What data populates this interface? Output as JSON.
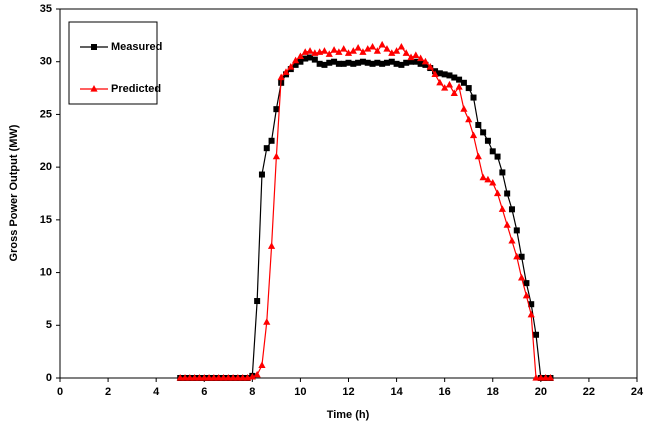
{
  "chart_data": {
    "type": "line",
    "xlabel": "Time (h)",
    "ylabel": "Gross Power Output (MW)",
    "x": [
      5.0,
      5.2,
      5.4,
      5.6,
      5.8,
      6.0,
      6.2,
      6.4,
      6.6,
      6.8,
      7.0,
      7.2,
      7.4,
      7.6,
      7.8,
      8.0,
      8.2,
      8.4,
      8.6,
      8.8,
      9.0,
      9.2,
      9.4,
      9.6,
      9.8,
      10.0,
      10.2,
      10.4,
      10.6,
      10.8,
      11.0,
      11.2,
      11.4,
      11.6,
      11.8,
      12.0,
      12.2,
      12.4,
      12.6,
      12.8,
      13.0,
      13.2,
      13.4,
      13.6,
      13.8,
      14.0,
      14.2,
      14.4,
      14.6,
      14.8,
      15.0,
      15.2,
      15.4,
      15.6,
      15.8,
      16.0,
      16.2,
      16.4,
      16.6,
      16.8,
      17.0,
      17.2,
      17.4,
      17.6,
      17.8,
      18.0,
      18.2,
      18.4,
      18.6,
      18.8,
      19.0,
      19.2,
      19.4,
      19.6,
      19.8,
      20.0,
      20.2,
      20.4
    ],
    "series": [
      {
        "name": "Measured",
        "color": "#000000",
        "marker": "square",
        "values": [
          0,
          0,
          0,
          0,
          0,
          0,
          0,
          0,
          0,
          0,
          0,
          0,
          0,
          0,
          0,
          0.2,
          7.3,
          19.3,
          21.8,
          22.5,
          25.5,
          28.0,
          28.8,
          29.3,
          29.7,
          30.0,
          30.3,
          30.4,
          30.2,
          29.8,
          29.7,
          29.9,
          30.0,
          29.8,
          29.8,
          29.9,
          29.8,
          29.9,
          30.0,
          29.9,
          29.8,
          29.9,
          29.8,
          29.9,
          30.0,
          29.8,
          29.7,
          29.9,
          30.0,
          30.0,
          29.8,
          29.7,
          29.4,
          29.1,
          28.9,
          28.8,
          28.7,
          28.5,
          28.3,
          28.0,
          27.5,
          26.6,
          24.0,
          23.3,
          22.5,
          21.5,
          21.0,
          19.5,
          17.5,
          16.0,
          14.0,
          11.5,
          9.0,
          7.0,
          4.1,
          0,
          0,
          0
        ]
      },
      {
        "name": "Predicted",
        "color": "#ff0000",
        "marker": "triangle",
        "values": [
          0,
          0,
          0,
          0,
          0,
          0,
          0,
          0,
          0,
          0,
          0,
          0,
          0,
          0,
          0,
          0.1,
          0.3,
          1.2,
          5.3,
          12.5,
          21.0,
          28.5,
          29.0,
          29.5,
          30.1,
          30.5,
          30.9,
          31.0,
          30.8,
          30.9,
          31.0,
          30.7,
          31.1,
          30.9,
          31.2,
          30.8,
          31.0,
          31.3,
          30.9,
          31.2,
          31.4,
          31.0,
          31.6,
          31.2,
          30.8,
          31.0,
          31.4,
          30.8,
          30.4,
          30.6,
          30.3,
          30.0,
          29.5,
          28.8,
          28.0,
          27.5,
          27.8,
          27.0,
          27.6,
          25.5,
          24.5,
          23.0,
          21.0,
          19.0,
          18.8,
          18.5,
          17.5,
          16.0,
          14.5,
          13.0,
          11.5,
          9.5,
          7.8,
          6.0,
          0,
          0,
          0,
          0
        ]
      }
    ],
    "xlim": [
      0,
      24
    ],
    "xticks": [
      0,
      2,
      4,
      6,
      8,
      10,
      12,
      14,
      16,
      18,
      20,
      22,
      24
    ],
    "ylim": [
      0,
      35
    ],
    "yticks": [
      0,
      5,
      10,
      15,
      20,
      25,
      30,
      35
    ],
    "grid": false,
    "legend": "upper left"
  }
}
